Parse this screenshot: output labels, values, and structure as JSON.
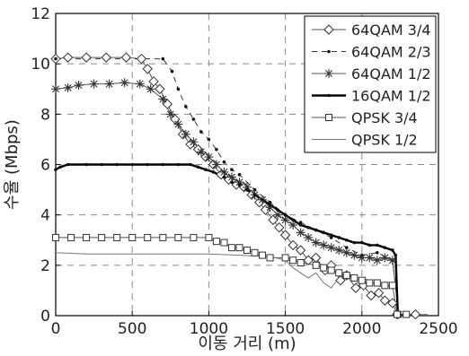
{
  "chart_data": {
    "type": "line",
    "title": "",
    "xlabel": "이동 거리 (m)",
    "ylabel": "수율 (Mbps)",
    "xlim": [
      0,
      2500
    ],
    "ylim": [
      0,
      12
    ],
    "x_ticks": [
      "0",
      "500",
      "1000",
      "1500",
      "2000",
      "2500"
    ],
    "y_ticks": [
      "0",
      "2",
      "4",
      "6",
      "8",
      "10",
      "12"
    ],
    "grid": true,
    "grid_style": "dashed",
    "legend_position": "top-right",
    "series": [
      {
        "name": "64QAM 3/4",
        "line": "thin",
        "marker": "diamond",
        "color": "#555555",
        "points": [
          [
            0,
            10.2
          ],
          [
            80,
            10.25
          ],
          [
            200,
            10.25
          ],
          [
            330,
            10.25
          ],
          [
            460,
            10.25
          ],
          [
            560,
            10.2
          ],
          [
            600,
            9.8
          ],
          [
            640,
            9.3
          ],
          [
            680,
            9.0
          ],
          [
            730,
            8.4
          ],
          [
            780,
            7.8
          ],
          [
            830,
            7.2
          ],
          [
            880,
            6.8
          ],
          [
            930,
            6.6
          ],
          [
            980,
            6.3
          ],
          [
            1030,
            6.0
          ],
          [
            1080,
            5.6
          ],
          [
            1130,
            5.4
          ],
          [
            1180,
            5.2
          ],
          [
            1230,
            5.1
          ],
          [
            1280,
            4.8
          ],
          [
            1330,
            4.5
          ],
          [
            1370,
            4.2
          ],
          [
            1420,
            3.8
          ],
          [
            1460,
            3.5
          ],
          [
            1500,
            3.2
          ],
          [
            1550,
            2.8
          ],
          [
            1600,
            2.6
          ],
          [
            1650,
            2.2
          ],
          [
            1700,
            2.3
          ],
          [
            1760,
            1.8
          ],
          [
            1800,
            2.0
          ],
          [
            1860,
            1.4
          ],
          [
            1900,
            1.6
          ],
          [
            1960,
            1.1
          ],
          [
            2010,
            1.2
          ],
          [
            2060,
            0.8
          ],
          [
            2110,
            0.9
          ],
          [
            2150,
            0.6
          ],
          [
            2200,
            0.5
          ],
          [
            2230,
            0.05
          ],
          [
            2350,
            0.05
          ]
        ]
      },
      {
        "name": "64QAM 2/3",
        "line": "dashed",
        "marker": "dot",
        "color": "#333333",
        "points": [
          [
            0,
            10.2
          ],
          [
            700,
            10.2
          ],
          [
            760,
            9.7
          ],
          [
            800,
            9.0
          ],
          [
            850,
            8.3
          ],
          [
            900,
            7.8
          ],
          [
            950,
            7.3
          ],
          [
            1000,
            7.0
          ],
          [
            1050,
            6.6
          ],
          [
            1100,
            6.1
          ],
          [
            1150,
            5.8
          ],
          [
            1200,
            5.6
          ],
          [
            1300,
            5.0
          ],
          [
            1400,
            4.5
          ],
          [
            1500,
            4.0
          ],
          [
            1600,
            3.7
          ],
          [
            1700,
            3.4
          ],
          [
            1800,
            3.1
          ],
          [
            1900,
            2.7
          ],
          [
            2000,
            2.4
          ],
          [
            2100,
            2.5
          ],
          [
            2200,
            2.2
          ],
          [
            2240,
            0.05
          ]
        ]
      },
      {
        "name": "64QAM 1/2",
        "line": "thin",
        "marker": "star",
        "color": "#555555",
        "points": [
          [
            0,
            9.0
          ],
          [
            80,
            9.05
          ],
          [
            150,
            9.15
          ],
          [
            250,
            9.2
          ],
          [
            350,
            9.2
          ],
          [
            450,
            9.25
          ],
          [
            550,
            9.2
          ],
          [
            620,
            9.0
          ],
          [
            700,
            8.6
          ],
          [
            750,
            8.0
          ],
          [
            800,
            7.6
          ],
          [
            850,
            7.2
          ],
          [
            900,
            6.9
          ],
          [
            950,
            6.5
          ],
          [
            1000,
            6.3
          ],
          [
            1050,
            6.0
          ],
          [
            1100,
            5.7
          ],
          [
            1150,
            5.5
          ],
          [
            1200,
            5.3
          ],
          [
            1250,
            5.1
          ],
          [
            1300,
            4.8
          ],
          [
            1350,
            4.6
          ],
          [
            1400,
            4.3
          ],
          [
            1450,
            4.0
          ],
          [
            1500,
            3.8
          ],
          [
            1550,
            3.6
          ],
          [
            1600,
            3.3
          ],
          [
            1650,
            3.1
          ],
          [
            1700,
            2.9
          ],
          [
            1750,
            2.8
          ],
          [
            1800,
            2.7
          ],
          [
            1850,
            2.6
          ],
          [
            1900,
            2.5
          ],
          [
            1950,
            2.4
          ],
          [
            2000,
            2.3
          ],
          [
            2050,
            2.3
          ],
          [
            2100,
            2.2
          ],
          [
            2150,
            2.3
          ],
          [
            2200,
            2.2
          ],
          [
            2240,
            0.05
          ]
        ]
      },
      {
        "name": "16QAM 1/2",
        "line": "thick",
        "marker": "dot",
        "color": "#000000",
        "points": [
          [
            0,
            5.8
          ],
          [
            30,
            5.9
          ],
          [
            80,
            6.0
          ],
          [
            200,
            6.0
          ],
          [
            300,
            6.0
          ],
          [
            400,
            6.0
          ],
          [
            500,
            6.0
          ],
          [
            600,
            6.0
          ],
          [
            700,
            6.0
          ],
          [
            800,
            6.0
          ],
          [
            880,
            6.0
          ],
          [
            930,
            5.9
          ],
          [
            980,
            5.8
          ],
          [
            1030,
            5.7
          ],
          [
            1100,
            5.5
          ],
          [
            1150,
            5.3
          ],
          [
            1200,
            5.2
          ],
          [
            1250,
            5.0
          ],
          [
            1300,
            4.8
          ],
          [
            1350,
            4.6
          ],
          [
            1400,
            4.4
          ],
          [
            1450,
            4.2
          ],
          [
            1500,
            4.0
          ],
          [
            1550,
            3.8
          ],
          [
            1600,
            3.6
          ],
          [
            1650,
            3.5
          ],
          [
            1700,
            3.4
          ],
          [
            1750,
            3.3
          ],
          [
            1800,
            3.2
          ],
          [
            1850,
            3.1
          ],
          [
            1900,
            3.0
          ],
          [
            1950,
            2.9
          ],
          [
            2000,
            2.9
          ],
          [
            2050,
            2.8
          ],
          [
            2100,
            2.8
          ],
          [
            2150,
            2.7
          ],
          [
            2200,
            2.6
          ],
          [
            2220,
            2.4
          ],
          [
            2235,
            0.05
          ]
        ]
      },
      {
        "name": "QPSK 3/4",
        "line": "thin",
        "marker": "square",
        "color": "#555555",
        "points": [
          [
            0,
            3.1
          ],
          [
            100,
            3.1
          ],
          [
            200,
            3.1
          ],
          [
            300,
            3.1
          ],
          [
            400,
            3.1
          ],
          [
            500,
            3.1
          ],
          [
            600,
            3.1
          ],
          [
            700,
            3.1
          ],
          [
            800,
            3.1
          ],
          [
            900,
            3.1
          ],
          [
            1000,
            3.1
          ],
          [
            1050,
            2.95
          ],
          [
            1100,
            2.9
          ],
          [
            1150,
            2.7
          ],
          [
            1200,
            2.7
          ],
          [
            1250,
            2.6
          ],
          [
            1300,
            2.5
          ],
          [
            1350,
            2.4
          ],
          [
            1400,
            2.3
          ],
          [
            1500,
            2.3
          ],
          [
            1550,
            2.2
          ],
          [
            1600,
            2.1
          ],
          [
            1700,
            2.0
          ],
          [
            1750,
            1.9
          ],
          [
            1800,
            1.8
          ],
          [
            1850,
            1.7
          ],
          [
            1900,
            1.6
          ],
          [
            1950,
            1.5
          ],
          [
            2000,
            1.4
          ],
          [
            2050,
            1.3
          ],
          [
            2100,
            1.3
          ],
          [
            2150,
            1.2
          ],
          [
            2200,
            1.2
          ],
          [
            2230,
            0.05
          ],
          [
            2290,
            0.05
          ]
        ]
      },
      {
        "name": "QPSK 1/2",
        "line": "thin",
        "marker": "none",
        "color": "#777777",
        "points": [
          [
            0,
            2.5
          ],
          [
            200,
            2.45
          ],
          [
            400,
            2.45
          ],
          [
            600,
            2.45
          ],
          [
            800,
            2.45
          ],
          [
            1000,
            2.45
          ],
          [
            1200,
            2.4
          ],
          [
            1400,
            2.35
          ],
          [
            1500,
            2.2
          ],
          [
            1550,
            1.9
          ],
          [
            1600,
            1.7
          ],
          [
            1650,
            1.5
          ],
          [
            1700,
            1.7
          ],
          [
            1750,
            1.3
          ],
          [
            1800,
            1.1
          ],
          [
            1850,
            1.5
          ],
          [
            1900,
            1.6
          ],
          [
            1950,
            1.2
          ],
          [
            2000,
            1.5
          ],
          [
            2050,
            1.4
          ],
          [
            2100,
            1.2
          ],
          [
            2150,
            1.1
          ],
          [
            2200,
            1.2
          ],
          [
            2230,
            0.05
          ],
          [
            2430,
            0.05
          ]
        ]
      }
    ]
  }
}
